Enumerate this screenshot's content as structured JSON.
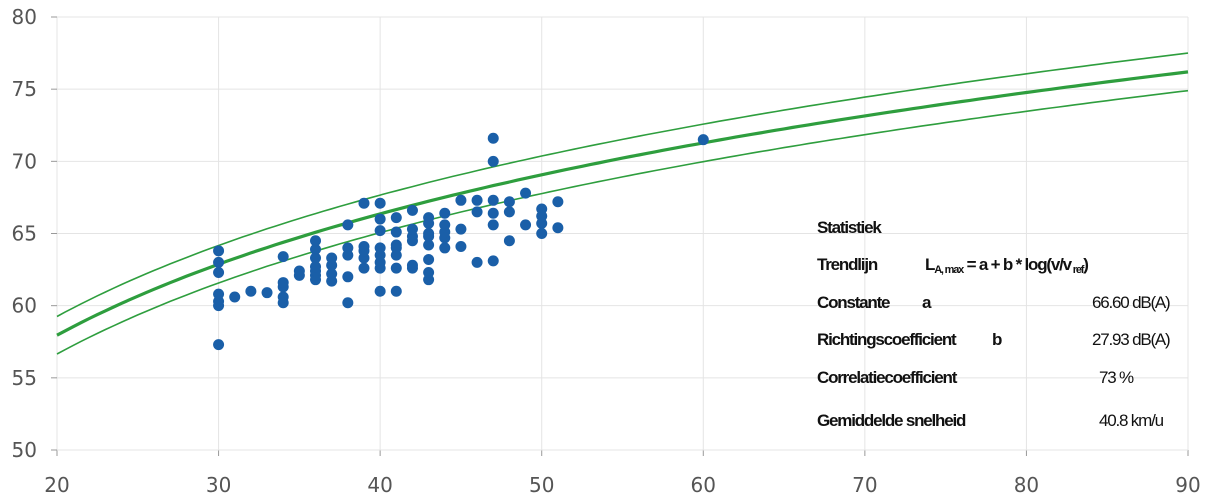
{
  "chart_data": {
    "type": "scatter",
    "xlim": [
      20,
      90
    ],
    "ylim": [
      50,
      80
    ],
    "x_ticks": [
      20,
      30,
      40,
      50,
      60,
      70,
      80,
      90
    ],
    "y_ticks": [
      50,
      55,
      60,
      65,
      70,
      75,
      80
    ],
    "grid": true,
    "colors": {
      "points": "#1a5fa8",
      "trend": "#2e9e3e",
      "grid": "#e4e4e4"
    },
    "points": [
      [
        30,
        57.3
      ],
      [
        30,
        60.0
      ],
      [
        30,
        60.3
      ],
      [
        30,
        60.8
      ],
      [
        30,
        62.3
      ],
      [
        30,
        63.0
      ],
      [
        30,
        63.8
      ],
      [
        31,
        60.6
      ],
      [
        32,
        61.0
      ],
      [
        33,
        60.9
      ],
      [
        34,
        60.2
      ],
      [
        34,
        60.6
      ],
      [
        34,
        61.3
      ],
      [
        34,
        61.6
      ],
      [
        34,
        63.4
      ],
      [
        35,
        62.1
      ],
      [
        35,
        62.4
      ],
      [
        36,
        61.8
      ],
      [
        36,
        62.1
      ],
      [
        36,
        62.4
      ],
      [
        36,
        62.7
      ],
      [
        36,
        63.3
      ],
      [
        36,
        63.9
      ],
      [
        36,
        64.5
      ],
      [
        37,
        61.7
      ],
      [
        37,
        62.2
      ],
      [
        37,
        62.8
      ],
      [
        37,
        63.3
      ],
      [
        38,
        60.2
      ],
      [
        38,
        62.0
      ],
      [
        38,
        63.5
      ],
      [
        38,
        64.0
      ],
      [
        38,
        65.6
      ],
      [
        39,
        62.6
      ],
      [
        39,
        63.3
      ],
      [
        39,
        63.8
      ],
      [
        39,
        64.1
      ],
      [
        39,
        67.1
      ],
      [
        40,
        61.0
      ],
      [
        40,
        62.6
      ],
      [
        40,
        63.0
      ],
      [
        40,
        63.5
      ],
      [
        40,
        64.0
      ],
      [
        40,
        65.2
      ],
      [
        40,
        66.0
      ],
      [
        40,
        67.1
      ],
      [
        41,
        61.0
      ],
      [
        41,
        62.6
      ],
      [
        41,
        63.5
      ],
      [
        41,
        64.0
      ],
      [
        41,
        64.2
      ],
      [
        41,
        65.1
      ],
      [
        41,
        66.1
      ],
      [
        42,
        62.6
      ],
      [
        42,
        62.8
      ],
      [
        42,
        64.5
      ],
      [
        42,
        64.8
      ],
      [
        42,
        65.3
      ],
      [
        42,
        66.6
      ],
      [
        43,
        61.8
      ],
      [
        43,
        62.3
      ],
      [
        43,
        63.2
      ],
      [
        43,
        64.2
      ],
      [
        43,
        64.8
      ],
      [
        43,
        65.0
      ],
      [
        43,
        65.7
      ],
      [
        43,
        66.1
      ],
      [
        44,
        64.0
      ],
      [
        44,
        64.7
      ],
      [
        44,
        65.1
      ],
      [
        44,
        65.6
      ],
      [
        44,
        66.4
      ],
      [
        45,
        64.1
      ],
      [
        45,
        65.3
      ],
      [
        45,
        67.3
      ],
      [
        46,
        63.0
      ],
      [
        46,
        66.5
      ],
      [
        46,
        67.3
      ],
      [
        47,
        63.1
      ],
      [
        47,
        65.6
      ],
      [
        47,
        66.4
      ],
      [
        47,
        67.3
      ],
      [
        47,
        70.0
      ],
      [
        47,
        71.6
      ],
      [
        48,
        64.5
      ],
      [
        48,
        66.5
      ],
      [
        48,
        67.2
      ],
      [
        49,
        65.6
      ],
      [
        49,
        67.8
      ],
      [
        50,
        65.0
      ],
      [
        50,
        65.7
      ],
      [
        50,
        66.2
      ],
      [
        50,
        66.7
      ],
      [
        51,
        65.4
      ],
      [
        51,
        67.2
      ],
      [
        60,
        71.5
      ]
    ],
    "trendline": {
      "a": 66.6,
      "b": 27.93,
      "v_ref": 40.8
    },
    "confidence_band": 1.3
  },
  "stats": {
    "title": "Statistiek",
    "trend_label": "Trendlijn",
    "formula_pre": "L",
    "formula_sub": "A, max",
    "formula_mid": " = a + b * log(v/v",
    "formula_sub2": " ref",
    "formula_end": ")",
    "constante_label": "Constante",
    "constante_symbol": "a",
    "constante_value": "66.60 dB(A)",
    "richting_label": "Richtingscoefficient",
    "richting_symbol": "b",
    "richting_value": "27.93 dB(A)",
    "correlatie_label": "Correlatiecoefficient",
    "correlatie_value": "73 %",
    "snelheid_label": "Gemiddelde snelheid",
    "snelheid_value": "40.8 km/u"
  }
}
